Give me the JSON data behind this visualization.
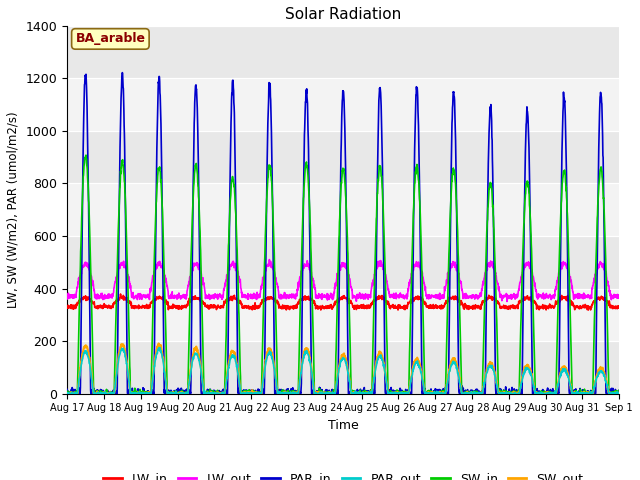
{
  "title": "Solar Radiation",
  "xlabel": "Time",
  "ylabel": "LW, SW (W/m2), PAR (umol/m2/s)",
  "ylim": [
    0,
    1400
  ],
  "annotation": "BA_arable",
  "annotation_color": "#8B0000",
  "annotation_bg": "#FFFFC0",
  "background_color": "#E8E8E8",
  "series": {
    "LW_in": {
      "color": "#FF0000",
      "lw": 1.2
    },
    "LW_out": {
      "color": "#FF00FF",
      "lw": 1.2
    },
    "PAR_in": {
      "color": "#0000CC",
      "lw": 1.2
    },
    "PAR_out": {
      "color": "#00CCCC",
      "lw": 1.2
    },
    "SW_in": {
      "color": "#00CC00",
      "lw": 1.2
    },
    "SW_out": {
      "color": "#FFA500",
      "lw": 1.5
    }
  },
  "n_days": 15,
  "ticks": [
    "Aug 17",
    "Aug 18",
    "Aug 19",
    "Aug 20",
    "Aug 21",
    "Aug 22",
    "Aug 23",
    "Aug 24",
    "Aug 25",
    "Aug 26",
    "Aug 27",
    "Aug 28",
    "Aug 29",
    "Aug 30",
    "Aug 31",
    "Sep 1"
  ]
}
